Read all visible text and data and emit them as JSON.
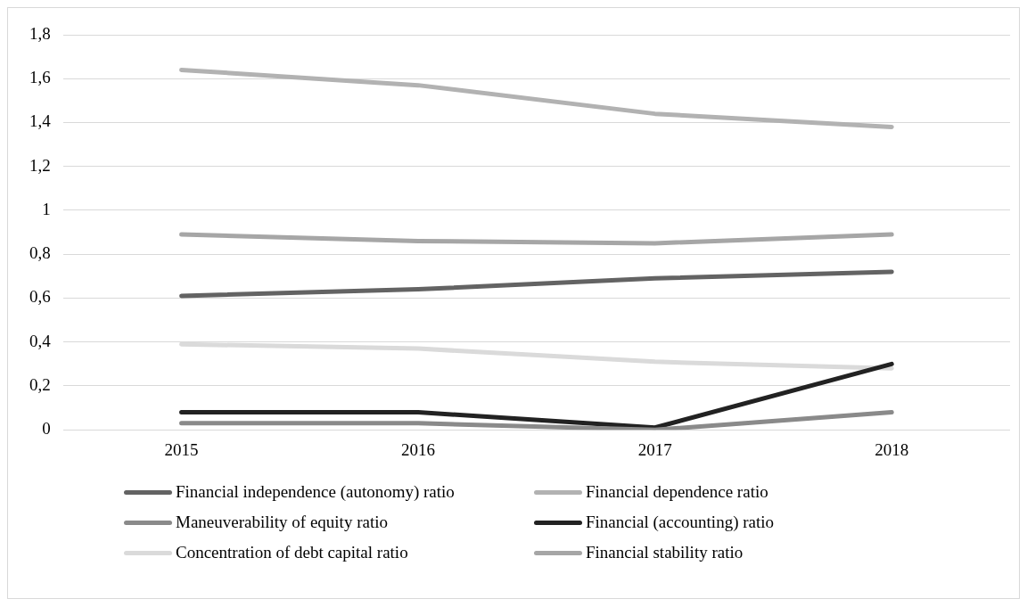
{
  "chart_data": {
    "type": "line",
    "categories": [
      "2015",
      "2016",
      "2017",
      "2018"
    ],
    "ylim": [
      0,
      1.8
    ],
    "yticks": [
      0,
      {
        "value": 0.2,
        "label": "0,2"
      },
      {
        "value": 0.4,
        "label": "0,4"
      },
      {
        "value": 0.6,
        "label": "0,6"
      },
      {
        "value": 0.8,
        "label": "0,8"
      },
      1,
      {
        "value": 1.2,
        "label": "1,2"
      },
      {
        "value": 1.4,
        "label": "1,4"
      },
      {
        "value": 1.6,
        "label": "1,6"
      },
      {
        "value": 1.8,
        "label": "1,8"
      }
    ],
    "grid": "y",
    "legend": "bottom",
    "marker": "none",
    "line_style": "solid",
    "series": [
      {
        "name": "Financial independence (autonomy) ratio",
        "color": "#636363",
        "values": [
          0.61,
          0.64,
          0.69,
          0.72
        ]
      },
      {
        "name": "Financial dependence ratio",
        "color": "#b2b2b2",
        "values": [
          1.64,
          1.57,
          1.44,
          1.38
        ]
      },
      {
        "name": "Maneuverability of equity ratio",
        "color": "#8a8a8a",
        "values": [
          0.03,
          0.03,
          0.0,
          0.08
        ]
      },
      {
        "name": "Financial (accounting) ratio",
        "color": "#222222",
        "values": [
          0.08,
          0.08,
          0.01,
          0.3
        ]
      },
      {
        "name": "Concentration of debt capital ratio",
        "color": "#dadada",
        "values": [
          0.39,
          0.37,
          0.31,
          0.28
        ]
      },
      {
        "name": "Financial stability ratio",
        "color": "#a6a6a6",
        "values": [
          0.89,
          0.86,
          0.85,
          0.89
        ]
      }
    ]
  }
}
